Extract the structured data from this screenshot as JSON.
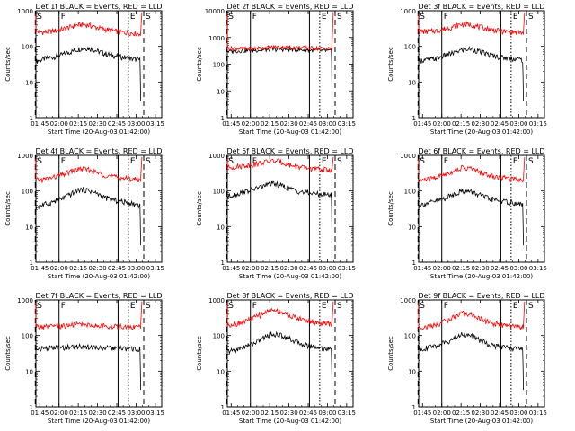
{
  "figure": {
    "ylabel": "Counts/sec",
    "xlabel": "Start Time (20-Aug-03 01:42:00)",
    "legend_text": "BLACK = Events, RED = LLD",
    "colors": {
      "events": "#000000",
      "lld": "#ff0000",
      "axes": "#000000",
      "background": "#ffffff"
    }
  },
  "chart_data": [
    {
      "type": "line",
      "title": "Det 1f BLACK = Events, RED = LLD",
      "x_ticks": [
        "01:45",
        "02:00",
        "02:15",
        "02:30",
        "02:45",
        "03:00",
        "03:15"
      ],
      "y_ticks": [
        "1",
        "10",
        "100",
        "1000"
      ],
      "ylim": [
        1,
        1000
      ],
      "x_range": [
        "01:42",
        "03:20"
      ],
      "markers": {
        "left": "S",
        "mid_left": "F",
        "mid_right": "E",
        "right": "S"
      },
      "series": [
        {
          "name": "Events",
          "values": [
            38,
            45,
            50,
            58,
            70,
            85,
            90,
            75,
            62,
            55,
            50,
            45,
            42
          ]
        },
        {
          "name": "LLD",
          "values": [
            260,
            250,
            270,
            300,
            350,
            410,
            400,
            340,
            300,
            270,
            250,
            240,
            230
          ]
        }
      ]
    },
    {
      "type": "line",
      "title": "Det 2f BLACK = Events, RED = LLD",
      "x_ticks": [
        "01:45",
        "02:00",
        "02:15",
        "02:30",
        "02:45",
        "03:00",
        "03:15"
      ],
      "y_ticks": [
        "1",
        "10",
        "100",
        "1000"
      ],
      "ylim": [
        1,
        10000
      ],
      "x_range": [
        "01:42",
        "03:20"
      ],
      "markers": {
        "left": "S",
        "mid_left": "F",
        "mid_right": "E",
        "right": "S"
      },
      "series": [
        {
          "name": "Events",
          "values": [
            300,
            310,
            320,
            330,
            340,
            350,
            360,
            360,
            350,
            340,
            330,
            320,
            310
          ]
        },
        {
          "name": "LLD",
          "values": [
            400,
            390,
            380,
            390,
            410,
            430,
            440,
            430,
            420,
            410,
            400,
            390,
            380
          ]
        }
      ]
    },
    {
      "type": "line",
      "title": "Det 3f BLACK = Events, RED = LLD",
      "x_ticks": [
        "01:45",
        "02:00",
        "02:15",
        "02:30",
        "02:45",
        "03:00",
        "03:15"
      ],
      "y_ticks": [
        "1",
        "10",
        "100",
        "1000"
      ],
      "ylim": [
        1,
        1000
      ],
      "x_range": [
        "01:42",
        "03:20"
      ],
      "markers": {
        "left": "S",
        "mid_left": "F",
        "mid_right": "E",
        "right": "S"
      },
      "series": [
        {
          "name": "Events",
          "values": [
            40,
            42,
            45,
            55,
            65,
            80,
            85,
            72,
            60,
            52,
            48,
            45,
            42
          ]
        },
        {
          "name": "LLD",
          "values": [
            270,
            260,
            275,
            310,
            360,
            420,
            410,
            350,
            310,
            280,
            260,
            250,
            240
          ]
        }
      ]
    },
    {
      "type": "line",
      "title": "Det 4f BLACK = Events, RED = LLD",
      "x_ticks": [
        "01:45",
        "02:00",
        "02:15",
        "02:30",
        "02:45",
        "03:00",
        "03:15"
      ],
      "y_ticks": [
        "1",
        "10",
        "100",
        "1000"
      ],
      "ylim": [
        1,
        1000
      ],
      "x_range": [
        "01:42",
        "03:20"
      ],
      "markers": {
        "left": "S",
        "mid_left": "F",
        "mid_right": "E",
        "right": "S"
      },
      "series": [
        {
          "name": "Events",
          "values": [
            35,
            42,
            50,
            60,
            80,
            110,
            105,
            85,
            65,
            55,
            50,
            45,
            40
          ]
        },
        {
          "name": "LLD",
          "values": [
            200,
            210,
            240,
            280,
            350,
            420,
            400,
            330,
            280,
            250,
            230,
            220,
            210
          ]
        }
      ]
    },
    {
      "type": "line",
      "title": "Det 5f BLACK = Events, RED = LLD",
      "x_ticks": [
        "01:45",
        "02:00",
        "02:15",
        "02:30",
        "02:45",
        "03:00",
        "03:15"
      ],
      "y_ticks": [
        "1",
        "10",
        "100",
        "1000"
      ],
      "ylim": [
        1,
        1000
      ],
      "x_range": [
        "01:42",
        "03:20"
      ],
      "markers": {
        "left": "S",
        "mid_left": "F",
        "mid_right": "E",
        "right": "S"
      },
      "series": [
        {
          "name": "Events",
          "values": [
            70,
            80,
            95,
            110,
            135,
            160,
            150,
            120,
            100,
            90,
            85,
            80,
            78
          ]
        },
        {
          "name": "LLD",
          "values": [
            450,
            480,
            520,
            560,
            620,
            700,
            680,
            560,
            480,
            440,
            420,
            400,
            390
          ]
        }
      ]
    },
    {
      "type": "line",
      "title": "Det 6f BLACK = Events, RED = LLD",
      "x_ticks": [
        "01:45",
        "02:00",
        "02:15",
        "02:30",
        "02:45",
        "03:00",
        "03:15"
      ],
      "y_ticks": [
        "1",
        "10",
        "100",
        "1000"
      ],
      "ylim": [
        1,
        1000
      ],
      "x_range": [
        "01:42",
        "03:20"
      ],
      "markers": {
        "left": "S",
        "mid_left": "F",
        "mid_right": "E",
        "right": "S"
      },
      "series": [
        {
          "name": "Events",
          "values": [
            40,
            45,
            52,
            62,
            80,
            100,
            95,
            78,
            62,
            55,
            50,
            46,
            42
          ]
        },
        {
          "name": "LLD",
          "values": [
            200,
            210,
            240,
            290,
            360,
            450,
            430,
            340,
            280,
            250,
            230,
            220,
            210
          ]
        }
      ]
    },
    {
      "type": "line",
      "title": "Det 7f BLACK = Events, RED = LLD",
      "x_ticks": [
        "01:45",
        "02:00",
        "02:15",
        "02:30",
        "02:45",
        "03:00",
        "03:15"
      ],
      "y_ticks": [
        "1",
        "10",
        "100",
        "1000"
      ],
      "ylim": [
        1,
        1000
      ],
      "x_range": [
        "01:42",
        "03:20"
      ],
      "markers": {
        "left": "S",
        "mid_left": "F",
        "mid_right": "E",
        "right": "S"
      },
      "series": [
        {
          "name": "Events",
          "values": [
            42,
            44,
            45,
            46,
            48,
            50,
            48,
            46,
            45,
            44,
            43,
            42,
            42
          ]
        },
        {
          "name": "LLD",
          "values": [
            180,
            175,
            180,
            185,
            195,
            210,
            200,
            190,
            185,
            180,
            180,
            175,
            175
          ]
        }
      ]
    },
    {
      "type": "line",
      "title": "Det 8f BLACK = Events, RED = LLD",
      "x_ticks": [
        "01:45",
        "02:00",
        "02:15",
        "02:30",
        "02:45",
        "03:00",
        "03:15"
      ],
      "y_ticks": [
        "1",
        "10",
        "100",
        "1000"
      ],
      "ylim": [
        1,
        1000
      ],
      "x_range": [
        "01:42",
        "03:20"
      ],
      "markers": {
        "left": "S",
        "mid_left": "F",
        "mid_right": "E",
        "right": "S"
      },
      "series": [
        {
          "name": "Events",
          "values": [
            35,
            40,
            48,
            60,
            80,
            110,
            105,
            85,
            65,
            55,
            48,
            44,
            40
          ]
        },
        {
          "name": "LLD",
          "values": [
            200,
            215,
            250,
            310,
            400,
            520,
            480,
            380,
            310,
            270,
            240,
            220,
            210
          ]
        }
      ]
    },
    {
      "type": "line",
      "title": "Det 9f BLACK = Events, RED = LLD",
      "x_ticks": [
        "01:45",
        "02:00",
        "02:15",
        "02:30",
        "02:45",
        "03:00",
        "03:15"
      ],
      "y_ticks": [
        "1",
        "10",
        "100",
        "1000"
      ],
      "ylim": [
        1,
        1000
      ],
      "x_range": [
        "01:42",
        "03:20"
      ],
      "markers": {
        "left": "S",
        "mid_left": "F",
        "mid_right": "E",
        "right": "S"
      },
      "series": [
        {
          "name": "Events",
          "values": [
            42,
            45,
            52,
            62,
            80,
            110,
            100,
            75,
            58,
            50,
            46,
            44,
            42
          ]
        },
        {
          "name": "LLD",
          "values": [
            170,
            175,
            200,
            250,
            320,
            420,
            390,
            300,
            240,
            210,
            190,
            180,
            175
          ]
        }
      ]
    }
  ]
}
